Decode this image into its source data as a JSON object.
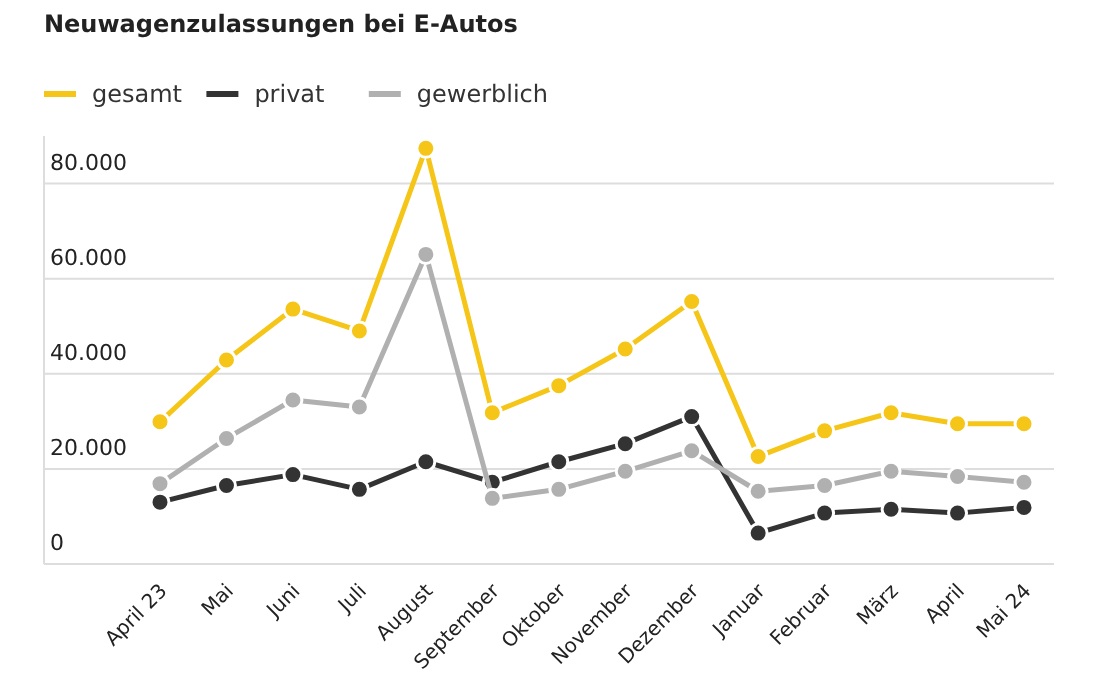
{
  "chart_data": {
    "type": "line",
    "title": "Neuwagenzulassungen bei E-Autos",
    "categories": [
      "April 23",
      "Mai",
      "Juni",
      "Juli",
      "August",
      "September",
      "Oktober",
      "November",
      "Dezember",
      "Januar",
      "Februar",
      "März",
      "April",
      "Mai 24"
    ],
    "series": [
      {
        "name": "gesamt",
        "color": "#f5c518",
        "values": [
          29900,
          42900,
          53600,
          49000,
          87400,
          31800,
          37500,
          45200,
          55200,
          22600,
          28000,
          31800,
          29500,
          29500
        ]
      },
      {
        "name": "privat",
        "color": "#333333",
        "values": [
          13000,
          16500,
          18800,
          15700,
          21500,
          17200,
          21500,
          25300,
          31000,
          6500,
          10700,
          11500,
          10700,
          11900
        ]
      },
      {
        "name": "gewerblich",
        "color": "#b0b0b0",
        "values": [
          16900,
          26400,
          34500,
          33000,
          65100,
          13800,
          15700,
          19500,
          23800,
          15300,
          16500,
          19500,
          18400,
          17200
        ]
      }
    ],
    "ylim": [
      0,
      90000
    ],
    "yticks": [
      {
        "value": 0,
        "label": "0"
      },
      {
        "value": 20000,
        "label": "20.000"
      },
      {
        "value": 40000,
        "label": "40.000"
      },
      {
        "value": 60000,
        "label": "60.000"
      },
      {
        "value": 80000,
        "label": "80.000"
      }
    ],
    "grid": "y",
    "legend": "top left",
    "marker": "circle",
    "line_style": "solid"
  }
}
